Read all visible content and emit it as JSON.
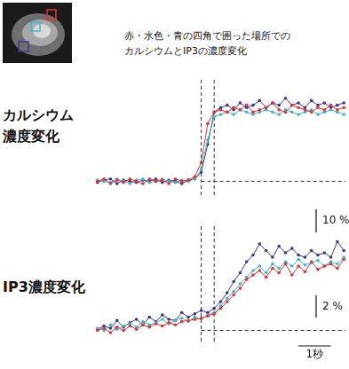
{
  "header": {
    "lines": [
      "赤・水色・青の四角で囲った場所での",
      "カルシウムとIP3の濃度変化"
    ]
  },
  "chart_data": [
    {
      "type": "line",
      "label_lines": [
        "カルシウム",
        "濃度変化"
      ],
      "x": [
        0,
        0.2,
        0.4,
        0.6,
        0.8,
        1.0,
        1.2,
        1.4,
        1.6,
        1.8,
        2.0,
        2.2,
        2.4,
        2.6,
        2.8,
        3.0,
        3.2,
        3.4,
        3.6,
        3.8,
        4.0,
        4.2,
        4.4,
        4.6,
        4.8,
        5.0,
        5.2,
        5.4,
        5.6,
        5.8,
        6.0,
        6.2,
        6.4,
        6.6,
        6.8,
        7.0,
        7.2,
        7.4,
        7.6
      ],
      "series": [
        {
          "color": "#e8312c",
          "values": [
            0,
            1,
            -1,
            0.5,
            -0.5,
            1,
            0,
            -1,
            1,
            0,
            0.5,
            -1,
            1,
            0,
            0.5,
            2,
            8,
            25,
            30,
            31,
            30,
            32,
            31,
            33,
            30,
            31,
            32,
            34,
            31,
            30,
            33,
            32,
            31,
            30,
            32,
            31,
            33,
            31,
            32
          ]
        },
        {
          "color": "#3fb5d0",
          "values": [
            0.5,
            0,
            -0.5,
            1,
            0,
            -1,
            0.5,
            1,
            -0.5,
            0,
            1,
            0,
            -0.5,
            0.5,
            0,
            1,
            5,
            18,
            28,
            29,
            30,
            29,
            31,
            30,
            29,
            30,
            31,
            30,
            29,
            31,
            30,
            29,
            30,
            31,
            29,
            30,
            31,
            30,
            29
          ]
        },
        {
          "color": "#3a3a8c",
          "values": [
            -0.5,
            0.5,
            1,
            -1,
            0.5,
            0,
            -0.5,
            0.5,
            0,
            1,
            -0.5,
            0.5,
            0,
            -1,
            0.5,
            1,
            4,
            16,
            30,
            32,
            33,
            31,
            34,
            32,
            33,
            35,
            32,
            34,
            33,
            36,
            33,
            34,
            32,
            35,
            33,
            34,
            32,
            33,
            34
          ]
        }
      ],
      "marker": "circle",
      "line_style": "solid",
      "xlim": [
        -0.05,
        7.65
      ],
      "ylim": [
        -6,
        44
      ],
      "grid": false,
      "tick_labels": false,
      "annotations": {
        "vlines": [
          3.2,
          3.6
        ],
        "hline": 0
      },
      "scale_bars": [
        {
          "axis": "y",
          "value": 10,
          "label": "10 %"
        }
      ]
    },
    {
      "type": "line",
      "label_lines": [
        "IP3濃度変化"
      ],
      "x": [
        0,
        0.2,
        0.4,
        0.6,
        0.8,
        1.0,
        1.2,
        1.4,
        1.6,
        1.8,
        2.0,
        2.2,
        2.4,
        2.6,
        2.8,
        3.0,
        3.2,
        3.4,
        3.6,
        3.8,
        4.0,
        4.2,
        4.4,
        4.6,
        4.8,
        5.0,
        5.2,
        5.4,
        5.6,
        5.8,
        6.0,
        6.2,
        6.4,
        6.6,
        6.8,
        7.0,
        7.2,
        7.4,
        7.6
      ],
      "series": [
        {
          "color": "#e8312c",
          "values": [
            0,
            0.2,
            -0.2,
            0.3,
            0,
            0.4,
            0.1,
            0.5,
            0.3,
            0.6,
            0.4,
            0.7,
            0.5,
            0.8,
            0.9,
            1.0,
            1.1,
            1.3,
            1.5,
            2.0,
            2.6,
            3.2,
            3.8,
            4.6,
            5.0,
            5.4,
            4.8,
            5.6,
            5.2,
            6.0,
            5.0,
            5.8,
            5.3,
            6.2,
            5.5,
            5.8,
            6.0,
            5.6,
            6.4
          ]
        },
        {
          "color": "#3fb5d0",
          "values": [
            0.2,
            0,
            0.5,
            0.1,
            0.4,
            0.6,
            0.3,
            0.8,
            0.5,
            0.7,
            1.0,
            0.6,
            0.9,
            1.1,
            0.8,
            1.2,
            1.0,
            1.4,
            1.6,
            2.2,
            2.9,
            3.5,
            4.2,
            4.8,
            5.4,
            5.8,
            5.2,
            6.0,
            5.6,
            6.2,
            5.8,
            6.4,
            5.9,
            6.1,
            6.3,
            5.8,
            6.2,
            6.0,
            6.6
          ]
        },
        {
          "color": "#3a3a8c",
          "values": [
            0.1,
            0.4,
            0.2,
            0.9,
            0.3,
            0.7,
            1.0,
            0.5,
            1.2,
            0.8,
            1.4,
            1.0,
            0.9,
            1.6,
            1.2,
            1.5,
            1.8,
            1.6,
            2.0,
            2.6,
            3.4,
            4.4,
            5.2,
            6.2,
            6.8,
            7.8,
            7.2,
            6.6,
            7.6,
            7.0,
            7.4,
            6.8,
            6.6,
            7.2,
            6.8,
            7.0,
            6.6,
            8.0,
            7.2
          ]
        }
      ],
      "marker": "circle",
      "line_style": "solid",
      "xlim": [
        -0.05,
        7.65
      ],
      "ylim": [
        -1,
        9.4
      ],
      "grid": false,
      "tick_labels": false,
      "annotations": {
        "vlines": [
          3.2,
          3.6
        ],
        "hline": 0
      },
      "scale_bars": [
        {
          "axis": "y",
          "value": 2,
          "label": "2 %"
        },
        {
          "axis": "x",
          "value": 1,
          "label": "1秒"
        }
      ]
    }
  ]
}
